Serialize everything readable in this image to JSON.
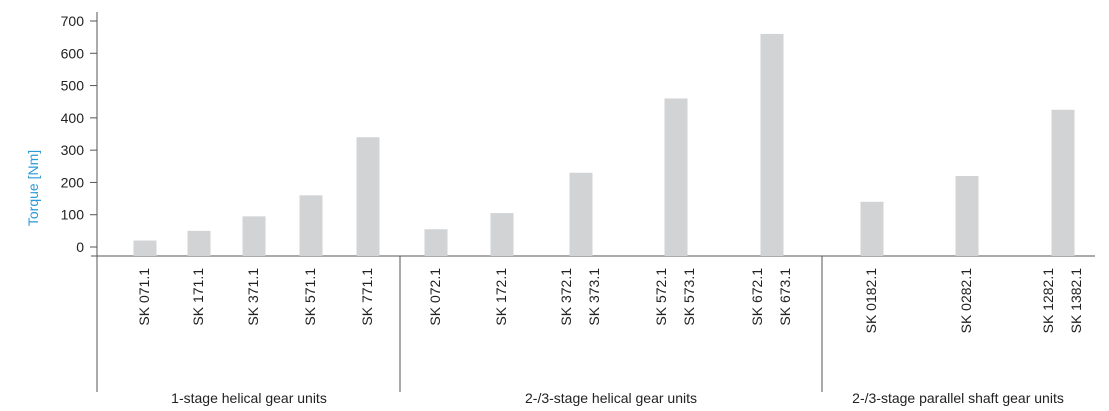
{
  "chart_data": {
    "type": "bar",
    "ylabel": "Torque [Nm]",
    "ylim": [
      0,
      700
    ],
    "yticks": [
      0,
      100,
      200,
      300,
      400,
      500,
      600,
      700
    ],
    "grid": false,
    "legend": "none",
    "colors": {
      "bar": "#d2d3d5",
      "axis": "#555555",
      "ylabel": "#2b9ad6",
      "text": "#222222"
    },
    "groups": [
      {
        "label": "1-stage helical gear units",
        "bars": [
          {
            "labels": [
              "SK 071.1"
            ],
            "value": 20
          },
          {
            "labels": [
              "SK 171.1"
            ],
            "value": 50
          },
          {
            "labels": [
              "SK 371.1"
            ],
            "value": 95
          },
          {
            "labels": [
              "SK 571.1"
            ],
            "value": 160
          },
          {
            "labels": [
              "SK 771.1"
            ],
            "value": 340
          }
        ]
      },
      {
        "label": "2-/3-stage helical gear units",
        "bars": [
          {
            "labels": [
              "SK 072.1"
            ],
            "value": 55
          },
          {
            "labels": [
              "SK 172.1"
            ],
            "value": 105
          },
          {
            "labels": [
              "SK 372.1",
              "SK 373.1"
            ],
            "value": 230
          },
          {
            "labels": [
              "SK 572.1",
              "SK 573.1"
            ],
            "value": 460
          },
          {
            "labels": [
              "SK 672.1",
              "SK 673.1"
            ],
            "value": 660
          }
        ]
      },
      {
        "label": "2-/3-stage parallel shaft gear units",
        "bars": [
          {
            "labels": [
              "SK 0182.1"
            ],
            "value": 140
          },
          {
            "labels": [
              "SK 0282.1"
            ],
            "value": 220
          },
          {
            "labels": [
              "SK 1282.1",
              "SK 1382.1"
            ],
            "value": 425
          }
        ]
      }
    ]
  }
}
